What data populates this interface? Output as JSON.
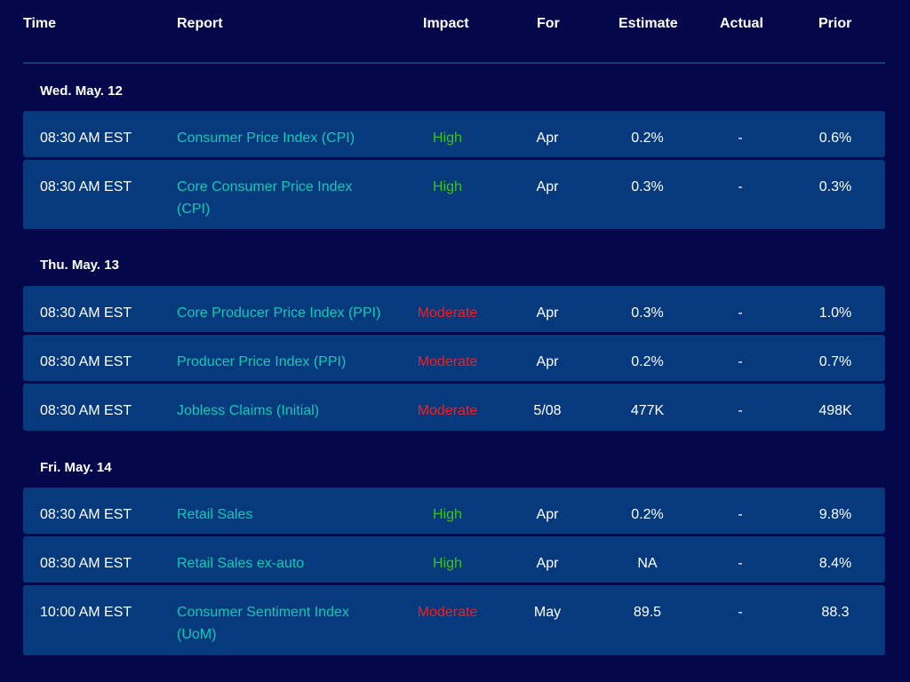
{
  "columns": {
    "time": "Time",
    "report": "Report",
    "impact": "Impact",
    "for": "For",
    "estimate": "Estimate",
    "actual": "Actual",
    "prior": "Prior"
  },
  "groups": [
    {
      "date": "Wed. May. 12",
      "rows": [
        {
          "time": "08:30 AM EST",
          "report": "Consumer Price Index (CPI)",
          "impact": "High",
          "for": "Apr",
          "estimate": "0.2%",
          "actual": "-",
          "prior": "0.6%"
        },
        {
          "time": "08:30 AM EST",
          "report": "Core Consumer Price Index (CPI)",
          "impact": "High",
          "for": "Apr",
          "estimate": "0.3%",
          "actual": "-",
          "prior": "0.3%"
        }
      ]
    },
    {
      "date": "Thu. May. 13",
      "rows": [
        {
          "time": "08:30 AM EST",
          "report": "Core Producer Price Index (PPI)",
          "impact": "Moderate",
          "for": "Apr",
          "estimate": "0.3%",
          "actual": "-",
          "prior": "1.0%"
        },
        {
          "time": "08:30 AM EST",
          "report": "Producer Price Index (PPI)",
          "impact": "Moderate",
          "for": "Apr",
          "estimate": "0.2%",
          "actual": "-",
          "prior": "0.7%"
        },
        {
          "time": "08:30 AM EST",
          "report": "Jobless Claims (Initial)",
          "impact": "Moderate",
          "for": "5/08",
          "estimate": "477K",
          "actual": "-",
          "prior": "498K"
        }
      ]
    },
    {
      "date": "Fri. May. 14",
      "rows": [
        {
          "time": "08:30 AM EST",
          "report": "Retail Sales",
          "impact": "High",
          "for": "Apr",
          "estimate": "0.2%",
          "actual": "-",
          "prior": "9.8%"
        },
        {
          "time": "08:30 AM EST",
          "report": "Retail Sales ex-auto",
          "impact": "High",
          "for": "Apr",
          "estimate": "NA",
          "actual": "-",
          "prior": "8.4%"
        },
        {
          "time": "10:00 AM EST",
          "report": "Consumer Sentiment Index (UoM)",
          "impact": "Moderate",
          "for": "May",
          "estimate": "89.5",
          "actual": "-",
          "prior": "88.3"
        }
      ]
    }
  ],
  "colors": {
    "background": "#04074a",
    "row": "#073a7c",
    "report": "#12c9b9",
    "high": "#3bc41b",
    "moderate": "#ff1a1a"
  }
}
